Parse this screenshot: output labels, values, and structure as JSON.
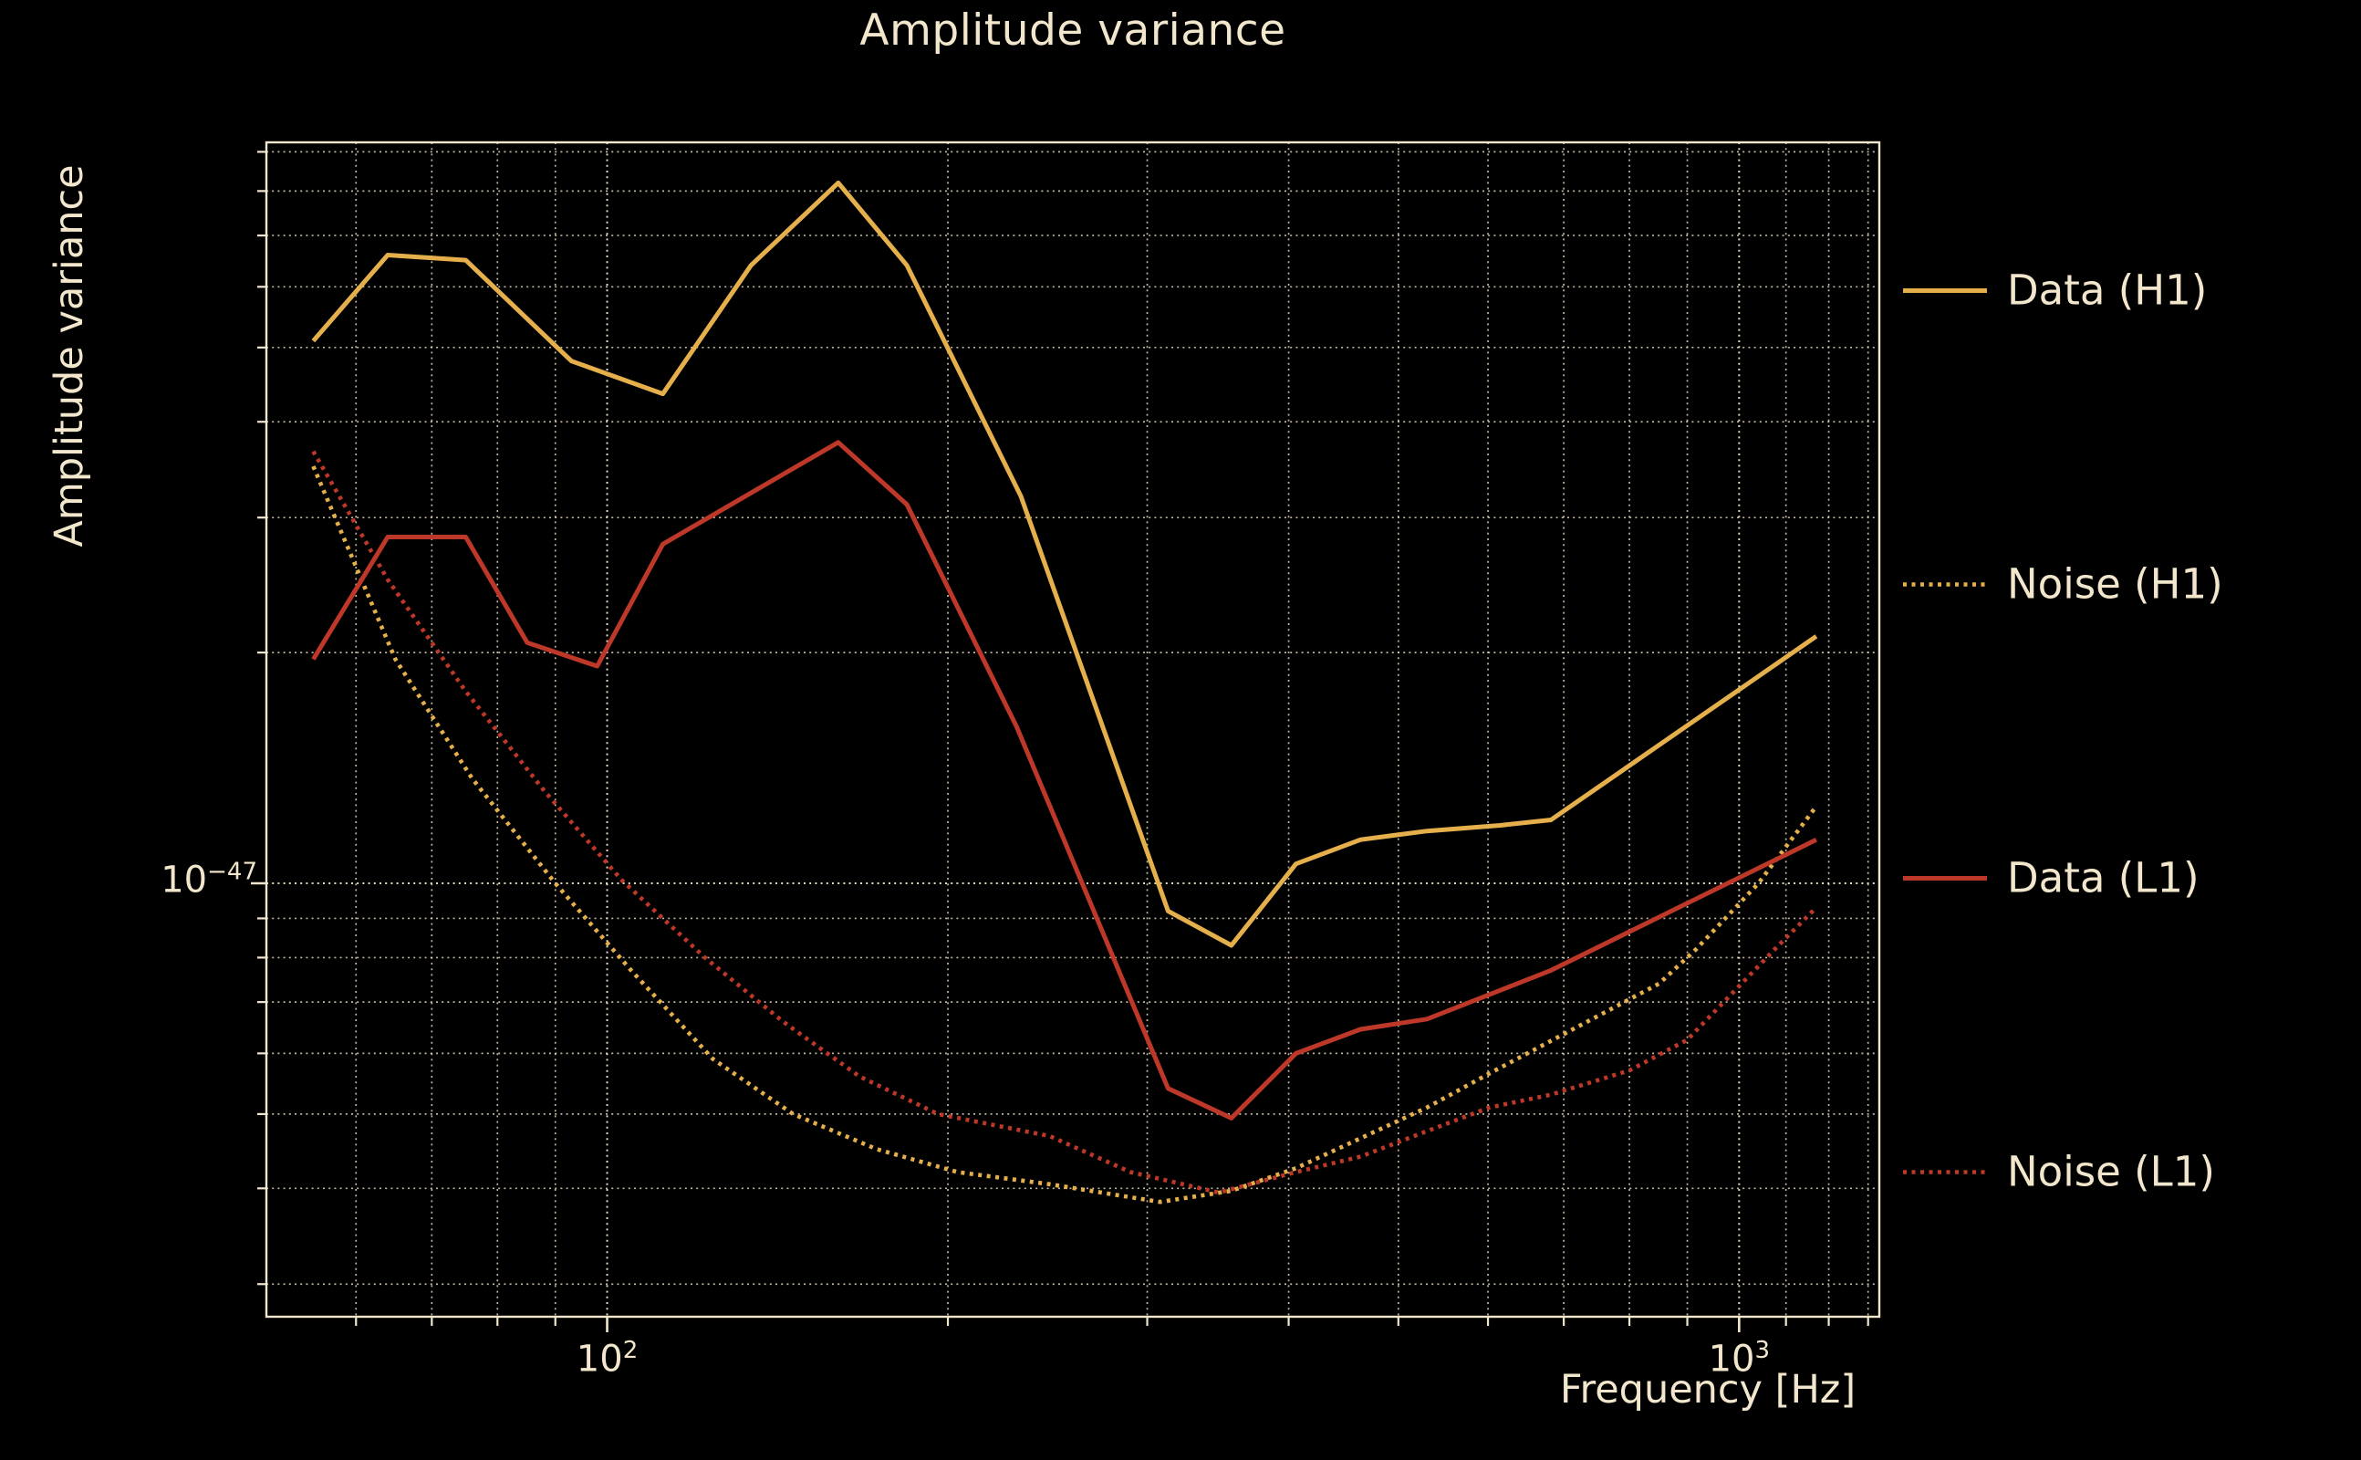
{
  "title": "Amplitude variance",
  "axes": {
    "xlabel": "Frequency [Hz]",
    "ylabel": "Amplitude variance",
    "x_tick_labels": [
      {
        "value": 100,
        "base": "10",
        "exp": "2"
      },
      {
        "value": 1000,
        "base": "10",
        "exp": "3"
      }
    ],
    "y_tick_labels": [
      {
        "value": 1e-47,
        "base": "10",
        "exp": "−47"
      }
    ]
  },
  "colors": {
    "background": "#000000",
    "foreground": "#F2E7CC",
    "grid": "#EFE4C8",
    "h1": "#E5B04C",
    "l1": "#BE3829"
  },
  "legend": [
    {
      "label": "Data (H1)",
      "series": "data_h1"
    },
    {
      "label": "Noise (H1)",
      "series": "noise_h1"
    },
    {
      "label": "Data (L1)",
      "series": "data_l1"
    },
    {
      "label": "Noise (L1)",
      "series": "noise_l1"
    }
  ],
  "chart_data": {
    "type": "line",
    "title": "Amplitude variance",
    "xlabel": "Frequency [Hz]",
    "ylabel": "Amplitude variance",
    "xscale": "log",
    "yscale": "log",
    "xlim": [
      50,
      1330
    ],
    "ylim": [
      2.72e-48,
      9.26e-47
    ],
    "grid": true,
    "legend_position": "outside-right",
    "x_major_gridlines": [
      100,
      1000
    ],
    "x_minor_gridlines": [
      60,
      70,
      80,
      90,
      200,
      300,
      400,
      500,
      600,
      700,
      800,
      900,
      1100,
      1200,
      1300
    ],
    "y_major_gridlines": [
      1e-47
    ],
    "y_minor_gridlines": [
      3e-48,
      4e-48,
      5e-48,
      6e-48,
      7e-48,
      8e-48,
      9e-48,
      2e-47,
      3e-47,
      4e-47,
      5e-47,
      6e-47,
      7e-47,
      8e-47,
      9e-47
    ],
    "series": [
      {
        "id": "data_h1",
        "name": "Data (H1)",
        "color_key": "h1",
        "style": "solid",
        "points": [
          [
            55,
            5.1e-47
          ],
          [
            64,
            6.6e-47
          ],
          [
            75,
            6.5e-47
          ],
          [
            93,
            4.8e-47
          ],
          [
            112,
            4.35e-47
          ],
          [
            134,
            6.4e-47
          ],
          [
            160,
            8.2e-47
          ],
          [
            184,
            6.4e-47
          ],
          [
            232,
            3.2e-47
          ],
          [
            313,
            9.2e-48
          ],
          [
            356,
            8.3e-48
          ],
          [
            406,
            1.06e-47
          ],
          [
            463,
            1.14e-47
          ],
          [
            530,
            1.17e-47
          ],
          [
            615,
            1.19e-47
          ],
          [
            682,
            1.21e-47
          ],
          [
            1170,
            2.1e-47
          ]
        ]
      },
      {
        "id": "noise_h1",
        "name": "Noise (H1)",
        "color_key": "h1",
        "style": "dotted",
        "points": [
          [
            55,
            3.5e-47
          ],
          [
            65,
            1.96e-47
          ],
          [
            76,
            1.37e-47
          ],
          [
            90,
            1e-47
          ],
          [
            105,
            7.7e-48
          ],
          [
            124,
            5.9e-48
          ],
          [
            146,
            5e-48
          ],
          [
            173,
            4.5e-48
          ],
          [
            204,
            4.2e-48
          ],
          [
            246,
            4.05e-48
          ],
          [
            308,
            3.84e-48
          ],
          [
            356,
            3.97e-48
          ],
          [
            406,
            4.25e-48
          ],
          [
            463,
            4.65e-48
          ],
          [
            530,
            5.1e-48
          ],
          [
            602,
            5.65e-48
          ],
          [
            720,
            6.5e-48
          ],
          [
            850,
            7.4e-48
          ],
          [
            916,
            8.2e-48
          ],
          [
            1040,
            1e-47
          ],
          [
            1170,
            1.26e-47
          ]
        ]
      },
      {
        "id": "data_l1",
        "name": "Data (L1)",
        "color_key": "l1",
        "style": "solid",
        "points": [
          [
            55,
            1.96e-47
          ],
          [
            64,
            2.83e-47
          ],
          [
            75,
            2.83e-47
          ],
          [
            85,
            2.06e-47
          ],
          [
            98,
            1.92e-47
          ],
          [
            112,
            2.77e-47
          ],
          [
            134,
            3.23e-47
          ],
          [
            160,
            3.76e-47
          ],
          [
            184,
            3.12e-47
          ],
          [
            230,
            1.6e-47
          ],
          [
            313,
            5.4e-48
          ],
          [
            356,
            4.94e-48
          ],
          [
            406,
            6e-48
          ],
          [
            463,
            6.45e-48
          ],
          [
            530,
            6.65e-48
          ],
          [
            682,
            7.7e-48
          ],
          [
            1170,
            1.14e-47
          ]
        ]
      },
      {
        "id": "noise_l1",
        "name": "Noise (L1)",
        "color_key": "l1",
        "style": "dotted",
        "points": [
          [
            55,
            3.66e-47
          ],
          [
            64,
            2.49e-47
          ],
          [
            75,
            1.78e-47
          ],
          [
            88,
            1.32e-47
          ],
          [
            103,
            1.01e-47
          ],
          [
            122,
            8e-48
          ],
          [
            143,
            6.6e-48
          ],
          [
            167,
            5.6e-48
          ],
          [
            196,
            5e-48
          ],
          [
            246,
            4.68e-48
          ],
          [
            290,
            4.2e-48
          ],
          [
            347,
            3.95e-48
          ],
          [
            406,
            4.2e-48
          ],
          [
            463,
            4.4e-48
          ],
          [
            530,
            4.75e-48
          ],
          [
            602,
            5.1e-48
          ],
          [
            682,
            5.3e-48
          ],
          [
            800,
            5.7e-48
          ],
          [
            900,
            6.25e-48
          ],
          [
            1075,
            8.2e-48
          ],
          [
            1170,
            9.3e-48
          ]
        ]
      }
    ]
  }
}
